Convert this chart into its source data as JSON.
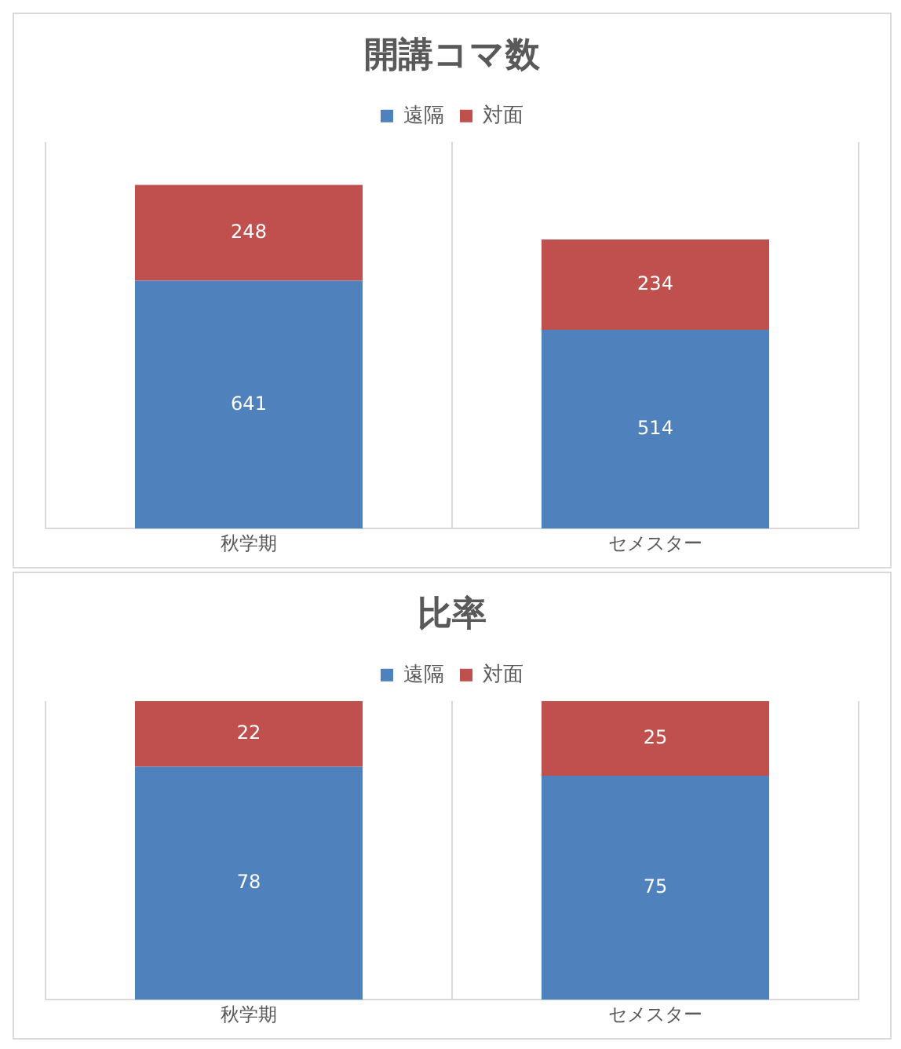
{
  "chart_data": [
    {
      "type": "bar",
      "title": "開講コマ数",
      "categories": [
        "秋学期",
        "セメスター"
      ],
      "stacked": true,
      "ylim": [
        0,
        1000
      ],
      "tick_labels": "x",
      "grid": "x",
      "legend": "top",
      "data_labels": true,
      "series": [
        {
          "name": "遠隔",
          "color": "#4f81bd",
          "values": [
            641,
            514
          ]
        },
        {
          "name": "対面",
          "color": "#c0504d",
          "values": [
            248,
            234
          ]
        }
      ]
    },
    {
      "type": "bar",
      "title": "比率",
      "categories": [
        "秋学期",
        "セメスター"
      ],
      "stacked": true,
      "ylim": [
        0,
        100
      ],
      "tick_labels": "x",
      "grid": "x",
      "legend": "top",
      "data_labels": true,
      "series": [
        {
          "name": "遠隔",
          "color": "#4f81bd",
          "values": [
            78,
            75
          ]
        },
        {
          "name": "対面",
          "color": "#c0504d",
          "values": [
            22,
            25
          ]
        }
      ]
    }
  ]
}
